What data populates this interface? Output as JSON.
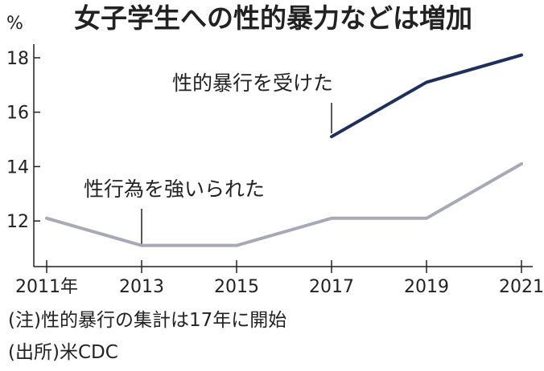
{
  "chart_data": {
    "type": "line",
    "title": "女子学生への性的暴力などは増加",
    "unit_label": "%",
    "x": [
      2011,
      2013,
      2015,
      2017,
      2019,
      2021
    ],
    "x_tick_labels": [
      "2011年",
      "2013",
      "2015",
      "2017",
      "2019",
      "2021"
    ],
    "ylim": [
      10.5,
      18.5
    ],
    "y_ticks": [
      12,
      14,
      16,
      18
    ],
    "y_tick_labels": [
      "12",
      "14",
      "16",
      "18"
    ],
    "grid": false,
    "series": [
      {
        "name": "性的暴行を受けた",
        "color": "#1f2f5c",
        "points": [
          [
            2017,
            15.1
          ],
          [
            2019,
            17.1
          ],
          [
            2021,
            18.1
          ]
        ]
      },
      {
        "name": "性行為を強いられた",
        "color": "#a7a9b6",
        "points": [
          [
            2011,
            12.1
          ],
          [
            2013,
            11.1
          ],
          [
            2015,
            11.1
          ],
          [
            2017,
            12.1
          ],
          [
            2019,
            12.1
          ],
          [
            2021,
            14.1
          ]
        ]
      }
    ]
  },
  "notes": {
    "note1": "(注)性的暴行の集計は17年に開始",
    "note2": "(出所)米CDC"
  }
}
